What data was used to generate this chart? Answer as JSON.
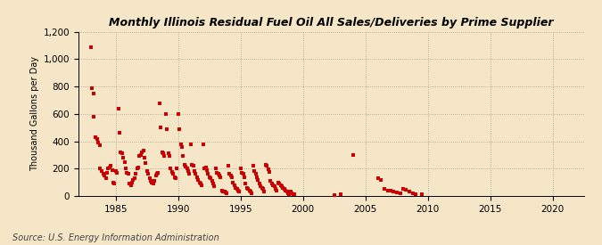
{
  "title": "Monthly Illinois Residual Fuel Oil All Sales/Deliveries by Prime Supplier",
  "ylabel": "Thousand Gallons per Day",
  "source": "Source: U.S. Energy Information Administration",
  "background_color": "#f5e6c8",
  "dot_color": "#cc0000",
  "xlim": [
    1982.0,
    2022.5
  ],
  "ylim": [
    0,
    1200
  ],
  "xticks": [
    1985,
    1990,
    1995,
    2000,
    2005,
    2010,
    2015,
    2020
  ],
  "yticks": [
    0,
    200,
    400,
    600,
    800,
    1000,
    1200
  ],
  "data_points": [
    [
      1983.0,
      1090
    ],
    [
      1983.1,
      790
    ],
    [
      1983.2,
      750
    ],
    [
      1983.25,
      580
    ],
    [
      1983.4,
      430
    ],
    [
      1983.5,
      420
    ],
    [
      1983.6,
      390
    ],
    [
      1983.7,
      370
    ],
    [
      1983.75,
      200
    ],
    [
      1983.9,
      180
    ],
    [
      1984.0,
      160
    ],
    [
      1984.1,
      150
    ],
    [
      1984.2,
      130
    ],
    [
      1984.3,
      170
    ],
    [
      1984.4,
      200
    ],
    [
      1984.5,
      210
    ],
    [
      1984.6,
      220
    ],
    [
      1984.7,
      190
    ],
    [
      1984.8,
      100
    ],
    [
      1984.9,
      90
    ],
    [
      1985.0,
      180
    ],
    [
      1985.1,
      170
    ],
    [
      1985.2,
      640
    ],
    [
      1985.3,
      460
    ],
    [
      1985.4,
      320
    ],
    [
      1985.5,
      310
    ],
    [
      1985.6,
      280
    ],
    [
      1985.7,
      250
    ],
    [
      1985.8,
      200
    ],
    [
      1985.9,
      170
    ],
    [
      1986.0,
      160
    ],
    [
      1986.1,
      90
    ],
    [
      1986.2,
      80
    ],
    [
      1986.3,
      100
    ],
    [
      1986.4,
      120
    ],
    [
      1986.5,
      130
    ],
    [
      1986.6,
      160
    ],
    [
      1986.7,
      200
    ],
    [
      1986.8,
      210
    ],
    [
      1986.9,
      290
    ],
    [
      1987.0,
      300
    ],
    [
      1987.1,
      320
    ],
    [
      1987.2,
      330
    ],
    [
      1987.3,
      280
    ],
    [
      1987.4,
      240
    ],
    [
      1987.5,
      180
    ],
    [
      1987.6,
      160
    ],
    [
      1987.7,
      130
    ],
    [
      1987.8,
      110
    ],
    [
      1987.9,
      100
    ],
    [
      1988.0,
      90
    ],
    [
      1988.1,
      110
    ],
    [
      1988.2,
      150
    ],
    [
      1988.3,
      160
    ],
    [
      1988.4,
      170
    ],
    [
      1988.5,
      680
    ],
    [
      1988.6,
      500
    ],
    [
      1988.7,
      320
    ],
    [
      1988.8,
      310
    ],
    [
      1988.9,
      290
    ],
    [
      1989.0,
      600
    ],
    [
      1989.1,
      490
    ],
    [
      1989.2,
      310
    ],
    [
      1989.3,
      290
    ],
    [
      1989.4,
      200
    ],
    [
      1989.5,
      175
    ],
    [
      1989.6,
      160
    ],
    [
      1989.7,
      140
    ],
    [
      1989.8,
      130
    ],
    [
      1989.9,
      200
    ],
    [
      1990.0,
      600
    ],
    [
      1990.1,
      490
    ],
    [
      1990.2,
      375
    ],
    [
      1990.3,
      355
    ],
    [
      1990.4,
      295
    ],
    [
      1990.5,
      230
    ],
    [
      1990.6,
      215
    ],
    [
      1990.7,
      200
    ],
    [
      1990.8,
      180
    ],
    [
      1990.9,
      160
    ],
    [
      1991.0,
      380
    ],
    [
      1991.1,
      230
    ],
    [
      1991.2,
      220
    ],
    [
      1991.3,
      180
    ],
    [
      1991.4,
      160
    ],
    [
      1991.5,
      140
    ],
    [
      1991.6,
      120
    ],
    [
      1991.7,
      100
    ],
    [
      1991.8,
      90
    ],
    [
      1991.9,
      80
    ],
    [
      1992.0,
      380
    ],
    [
      1992.1,
      200
    ],
    [
      1992.2,
      210
    ],
    [
      1992.3,
      190
    ],
    [
      1992.4,
      160
    ],
    [
      1992.5,
      140
    ],
    [
      1992.6,
      130
    ],
    [
      1992.7,
      110
    ],
    [
      1992.8,
      90
    ],
    [
      1992.9,
      70
    ],
    [
      1993.0,
      200
    ],
    [
      1993.1,
      170
    ],
    [
      1993.2,
      160
    ],
    [
      1993.3,
      150
    ],
    [
      1993.4,
      140
    ],
    [
      1993.5,
      40
    ],
    [
      1993.6,
      35
    ],
    [
      1993.7,
      30
    ],
    [
      1993.8,
      25
    ],
    [
      1993.9,
      20
    ],
    [
      1994.0,
      220
    ],
    [
      1994.1,
      160
    ],
    [
      1994.2,
      150
    ],
    [
      1994.3,
      140
    ],
    [
      1994.4,
      100
    ],
    [
      1994.5,
      80
    ],
    [
      1994.6,
      60
    ],
    [
      1994.7,
      50
    ],
    [
      1994.8,
      40
    ],
    [
      1994.9,
      30
    ],
    [
      1995.0,
      200
    ],
    [
      1995.1,
      170
    ],
    [
      1995.2,
      160
    ],
    [
      1995.3,
      140
    ],
    [
      1995.4,
      90
    ],
    [
      1995.5,
      60
    ],
    [
      1995.6,
      50
    ],
    [
      1995.7,
      40
    ],
    [
      1995.8,
      30
    ],
    [
      1995.9,
      20
    ],
    [
      1996.0,
      220
    ],
    [
      1996.1,
      180
    ],
    [
      1996.2,
      160
    ],
    [
      1996.3,
      140
    ],
    [
      1996.4,
      120
    ],
    [
      1996.5,
      90
    ],
    [
      1996.6,
      70
    ],
    [
      1996.7,
      60
    ],
    [
      1996.8,
      50
    ],
    [
      1996.9,
      30
    ],
    [
      1997.0,
      230
    ],
    [
      1997.1,
      220
    ],
    [
      1997.2,
      195
    ],
    [
      1997.3,
      175
    ],
    [
      1997.4,
      110
    ],
    [
      1997.5,
      90
    ],
    [
      1997.6,
      80
    ],
    [
      1997.7,
      70
    ],
    [
      1997.8,
      50
    ],
    [
      1997.9,
      40
    ],
    [
      1998.0,
      100
    ],
    [
      1998.1,
      90
    ],
    [
      1998.2,
      80
    ],
    [
      1998.3,
      70
    ],
    [
      1998.4,
      60
    ],
    [
      1998.5,
      50
    ],
    [
      1998.6,
      40
    ],
    [
      1998.7,
      30
    ],
    [
      1998.8,
      20
    ],
    [
      1998.9,
      10
    ],
    [
      1999.0,
      30
    ],
    [
      1999.1,
      20
    ],
    [
      1999.2,
      15
    ],
    [
      1999.3,
      10
    ],
    [
      2002.5,
      5
    ],
    [
      2003.0,
      10
    ],
    [
      2004.0,
      300
    ],
    [
      2006.0,
      130
    ],
    [
      2006.2,
      120
    ],
    [
      2006.5,
      50
    ],
    [
      2006.8,
      40
    ],
    [
      2007.0,
      40
    ],
    [
      2007.2,
      30
    ],
    [
      2007.5,
      25
    ],
    [
      2007.8,
      20
    ],
    [
      2008.0,
      50
    ],
    [
      2008.2,
      45
    ],
    [
      2008.5,
      30
    ],
    [
      2008.8,
      20
    ],
    [
      2009.0,
      15
    ],
    [
      2009.5,
      10
    ]
  ]
}
